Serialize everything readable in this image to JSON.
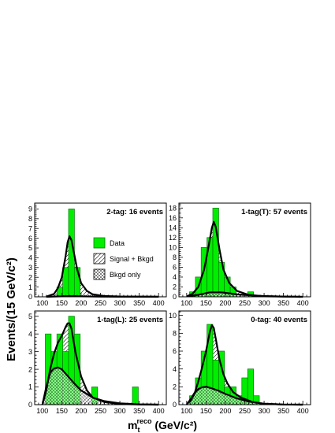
{
  "figure": {
    "ylabel": "Events/(15 GeV/c²)",
    "xlabel_base": "m",
    "xlabel_sub": "t",
    "xlabel_sup": "reco",
    "xlabel_unit": " (GeV/c²)"
  },
  "legend": {
    "position": "top-left panel, right side",
    "items": [
      {
        "label": "Data",
        "style": "solid",
        "color": "#00ee00"
      },
      {
        "label": "Signal + Bkgd",
        "style": "hatch-diagonal"
      },
      {
        "label": "Bkgd only",
        "style": "crosshatch"
      }
    ]
  },
  "colors": {
    "data": "#00ee00",
    "data_edge": "#007700",
    "curve": "#000000"
  },
  "chart_data": [
    {
      "type": "bar",
      "title": "2-tag: 16 events",
      "xlim": [
        80,
        420
      ],
      "ylim": [
        0,
        9.6
      ],
      "xticks": [
        100,
        150,
        200,
        250,
        300,
        350,
        400
      ],
      "yticks": [
        0,
        1,
        2,
        3,
        4,
        5,
        6,
        7,
        8,
        9
      ],
      "bin_width": 15,
      "data": {
        "x": [
          145,
          160,
          175,
          190
        ],
        "values": [
          1,
          3,
          9,
          3
        ]
      },
      "signal_plus_bkgd": {
        "x": [
          110,
          130,
          140,
          150,
          160,
          165,
          170,
          175,
          180,
          190,
          200,
          215,
          230,
          260,
          300,
          400
        ],
        "y": [
          0.02,
          0.3,
          0.9,
          2.0,
          4.2,
          5.6,
          6.2,
          5.8,
          4.8,
          2.8,
          1.4,
          0.6,
          0.25,
          0.08,
          0.03,
          0.01
        ]
      },
      "bkgd_only": {
        "x": [
          110,
          140,
          170,
          200,
          250,
          300,
          400
        ],
        "y": [
          0.0,
          0.04,
          0.07,
          0.05,
          0.02,
          0.01,
          0.0
        ]
      }
    },
    {
      "type": "bar",
      "title": "1-tag(T): 57 events",
      "xlim": [
        80,
        420
      ],
      "ylim": [
        0,
        19
      ],
      "xticks": [
        100,
        150,
        200,
        250,
        300,
        350,
        400
      ],
      "yticks": [
        0,
        2,
        4,
        6,
        8,
        10,
        12,
        14,
        16,
        18
      ],
      "bin_width": 15,
      "data": {
        "x": [
          115,
          130,
          145,
          160,
          175,
          190,
          205,
          220,
          265
        ],
        "values": [
          1,
          4,
          10,
          12,
          18,
          7,
          4,
          2,
          1
        ]
      },
      "signal_plus_bkgd": {
        "x": [
          100,
          115,
          130,
          145,
          155,
          165,
          170,
          175,
          185,
          195,
          210,
          230,
          260,
          300,
          400
        ],
        "y": [
          0.1,
          0.6,
          2.0,
          5.5,
          9.5,
          14.0,
          15.2,
          14.2,
          9.5,
          5.5,
          2.8,
          1.2,
          0.4,
          0.1,
          0.0
        ]
      },
      "bkgd_only": {
        "x": [
          100,
          130,
          160,
          190,
          230,
          280,
          350,
          400
        ],
        "y": [
          0.1,
          0.4,
          0.9,
          0.9,
          0.5,
          0.2,
          0.05,
          0.0
        ]
      }
    },
    {
      "type": "bar",
      "title": "1-tag(L): 25 events",
      "xlim": [
        80,
        420
      ],
      "ylim": [
        0,
        5.3
      ],
      "xticks": [
        100,
        150,
        200,
        250,
        300,
        350,
        400
      ],
      "yticks": [
        0,
        1,
        2,
        3,
        4,
        5
      ],
      "bin_width": 15,
      "data": {
        "x": [
          115,
          130,
          145,
          160,
          175,
          190,
          235,
          340
        ],
        "values": [
          4,
          3,
          4,
          3,
          5,
          4,
          1,
          1
        ]
      },
      "signal_plus_bkgd": {
        "x": [
          100,
          110,
          120,
          130,
          140,
          150,
          160,
          165,
          170,
          175,
          185,
          200,
          215,
          230,
          260,
          300,
          350,
          400
        ],
        "y": [
          0.0,
          0.8,
          2.0,
          2.9,
          3.5,
          3.9,
          4.4,
          4.6,
          4.6,
          4.3,
          3.0,
          1.6,
          0.8,
          0.4,
          0.15,
          0.04,
          0.01,
          0.0
        ]
      },
      "bkgd_only": {
        "x": [
          100,
          110,
          120,
          130,
          140,
          150,
          160,
          180,
          200,
          230,
          260,
          300,
          350,
          400
        ],
        "y": [
          0.0,
          1.0,
          1.8,
          2.05,
          2.1,
          2.0,
          1.75,
          1.25,
          0.8,
          0.4,
          0.2,
          0.07,
          0.02,
          0.0
        ]
      }
    },
    {
      "type": "bar",
      "title": "0-tag: 40 events",
      "xlim": [
        80,
        420
      ],
      "ylim": [
        0,
        10.5
      ],
      "xticks": [
        100,
        150,
        200,
        250,
        300,
        350,
        400
      ],
      "yticks": [
        0,
        2,
        4,
        6,
        8,
        10
      ],
      "bin_width": 15,
      "data": {
        "x": [
          115,
          130,
          145,
          160,
          175,
          190,
          205,
          220,
          235,
          250,
          265,
          280
        ],
        "values": [
          1,
          3,
          6,
          9,
          5,
          6,
          2,
          2,
          1,
          3,
          4,
          1
        ]
      },
      "signal_plus_bkgd": {
        "x": [
          100,
          110,
          120,
          130,
          140,
          150,
          160,
          165,
          170,
          175,
          185,
          195,
          205,
          220,
          240,
          270,
          300,
          350,
          400
        ],
        "y": [
          0.1,
          0.4,
          1.2,
          2.6,
          4.2,
          6.0,
          8.2,
          8.9,
          8.6,
          7.4,
          5.0,
          3.4,
          2.4,
          1.4,
          0.8,
          0.3,
          0.1,
          0.02,
          0.0
        ]
      },
      "bkgd_only": {
        "x": [
          100,
          110,
          120,
          130,
          140,
          150,
          160,
          180,
          200,
          230,
          260,
          300,
          350,
          400
        ],
        "y": [
          0.0,
          0.6,
          1.3,
          1.75,
          1.95,
          2.0,
          1.9,
          1.6,
          1.2,
          0.7,
          0.35,
          0.1,
          0.02,
          0.0
        ]
      }
    }
  ]
}
